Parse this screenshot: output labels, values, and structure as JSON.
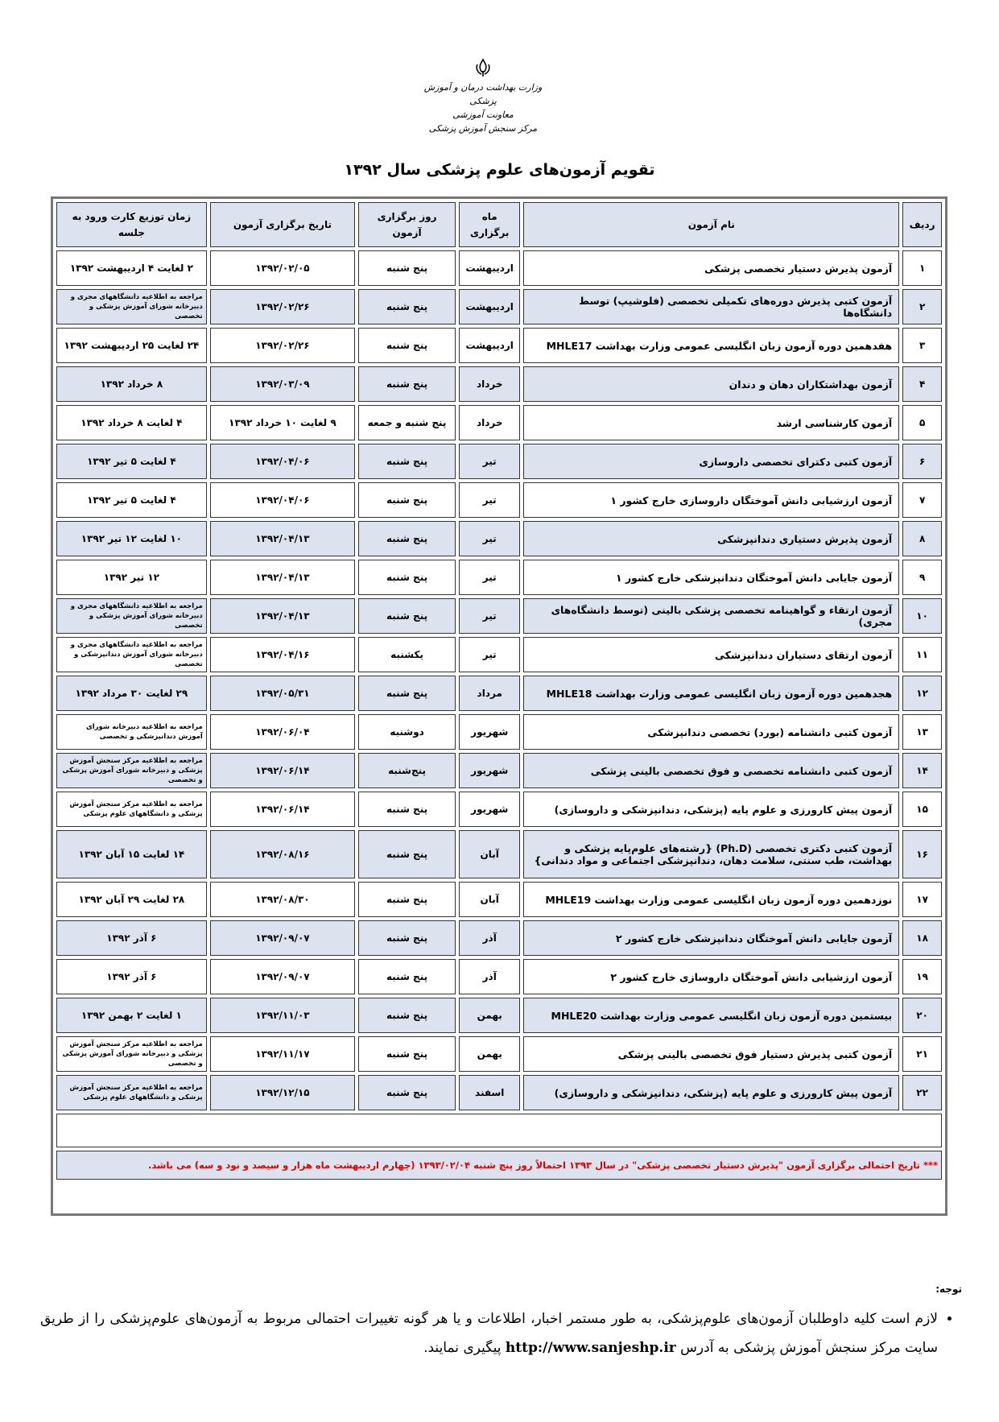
{
  "header": {
    "lines": [
      "وزارت بهداشت درمان و آموزش پزشکی",
      "معاونت آموزشی",
      "مرکز سنجش آموزش پزشکی"
    ],
    "title": "تقویم آزمون‌های علوم پزشکی سال ۱۳۹۲"
  },
  "table": {
    "columns": [
      "ردیف",
      "نام آزمون",
      "ماه برگزاری",
      "روز برگزاری آزمون",
      "تاریخ برگزاری آزمون",
      "زمان توزیع کارت ورود به جلسه"
    ],
    "rows": [
      [
        "۱",
        "آزمون پذیرش دستیار تخصصی پزشکی",
        "اردیبهشت",
        "پنج شنبه",
        "۱۳۹۲/۰۲/۰۵",
        "۲ لغایت ۴ اردیبهشت ۱۳۹۲"
      ],
      [
        "۲",
        "آزمون کتبی پذیرش دوره‌های تکمیلی تخصصی (فلوشیپ) توسط دانشگاه‌ها",
        "اردیبهشت",
        "پنج شنبه",
        "۱۳۹۲/۰۲/۲۶",
        "مراجعه به اطلاعیه دانشگاههای مجری و دبیرخانه شورای آموزش پزشکی و تخصصی"
      ],
      [
        "۳",
        "هفدهمین دوره آزمون زبان انگلیسی عمومی وزارت بهداشت MHLE17",
        "اردیبهشت",
        "پنج شنبه",
        "۱۳۹۲/۰۲/۲۶",
        "۲۴ لغایت ۲۵ اردیبهشت ۱۳۹۲"
      ],
      [
        "۴",
        "آزمون بهداشتکاران دهان و دندان",
        "خرداد",
        "پنج شنبه",
        "۱۳۹۲/۰۳/۰۹",
        "۸ خرداد ۱۳۹۲"
      ],
      [
        "۵",
        "آزمون کارشناسی ارشد",
        "خرداد",
        "پنج شنبه و جمعه",
        "۹ لغایت ۱۰ خرداد ۱۳۹۲",
        "۴ لغایت ۸ خرداد ۱۳۹۲"
      ],
      [
        "۶",
        "آزمون کتبی دکترای تخصصی داروسازی",
        "تیر",
        "پنج شنبه",
        "۱۳۹۲/۰۴/۰۶",
        "۴ لغایت ۵ تیر ۱۳۹۲"
      ],
      [
        "۷",
        "آزمون ارزشیابی دانش آموختگان داروسازی خارج کشور ۱",
        "تیر",
        "پنج شنبه",
        "۱۳۹۲/۰۴/۰۶",
        "۴ لغایت ۵ تیر ۱۳۹۲"
      ],
      [
        "۸",
        "آزمون پذیرش دستیاری دندانپزشکی",
        "تیر",
        "پنج شنبه",
        "۱۳۹۲/۰۴/۱۳",
        "۱۰ لغایت ۱۲ تیر ۱۳۹۲"
      ],
      [
        "۹",
        "آزمون جایابی دانش آموختگان دندانپزشکی خارج کشور ۱",
        "تیر",
        "پنج شنبه",
        "۱۳۹۲/۰۴/۱۳",
        "۱۲ تیر ۱۳۹۲"
      ],
      [
        "۱۰",
        "آزمون ارتقاء و گواهینامه تخصصی پزشکی بالینی (توسط دانشگاه‌های مجری)",
        "تیر",
        "پنج شنبه",
        "۱۳۹۲/۰۴/۱۳",
        "مراجعه به اطلاعیه دانشگاههای مجری و دبیرخانه شورای آموزش پزشکی و تخصصی"
      ],
      [
        "۱۱",
        "آزمون ارتقای دستیاران دندانپزشکی",
        "تیر",
        "یکشنبه",
        "۱۳۹۲/۰۴/۱۶",
        "مراجعه به اطلاعیه دانشگاههای مجری و دبیرخانه شورای آموزش دندانپزشکی و تخصصی"
      ],
      [
        "۱۲",
        "هجدهمین دوره آزمون زبان انگلیسی عمومی وزارت بهداشت MHLE18",
        "مرداد",
        "پنج شنبه",
        "۱۳۹۲/۰۵/۳۱",
        "۲۹ لغایت ۳۰ مرداد ۱۳۹۲"
      ],
      [
        "۱۳",
        "آزمون کتبی دانشنامه (بورد) تخصصی دندانپزشکی",
        "شهریور",
        "دوشنبه",
        "۱۳۹۲/۰۶/۰۴",
        "مراجعه به اطلاعیه دبیرخانه شورای آموزش دندانپزشکی و تخصصی"
      ],
      [
        "۱۴",
        "آزمون کتبی دانشنامه تخصصی و فوق تخصصی بالینی پزشکی",
        "شهریور",
        "پنج‌شنبه",
        "۱۳۹۲/۰۶/۱۴",
        "مراجعه به اطلاعیه مرکز سنجش آموزش پزشکی و دبیرخانه شورای آموزش پزشکی و تخصصی"
      ],
      [
        "۱۵",
        "آزمون پیش کارورزی و علوم پایه (پزشکی، دندانپزشکی و داروسازی)",
        "شهریور",
        "پنج شنبه",
        "۱۳۹۲/۰۶/۱۴",
        "مراجعه به اطلاعیه مرکز سنجش آموزش پزشکی و دانشگاههای علوم پزشکی"
      ],
      [
        "۱۶",
        "آزمون کتبی دکتری تخصصی (Ph.D) {رشته‌های علوم‌پایه پزشکی و بهداشت، طب سنتی، سلامت دهان، دندانپزشکی اجتماعی و مواد دندانی}",
        "آبان",
        "پنج شنبه",
        "۱۳۹۲/۰۸/۱۶",
        "۱۴ لغایت ۱۵ آبان ۱۳۹۲"
      ],
      [
        "۱۷",
        "نوزدهمین دوره آزمون زبان انگلیسی عمومی وزارت بهداشت MHLE19",
        "آبان",
        "پنج شنبه",
        "۱۳۹۲/۰۸/۳۰",
        "۲۸ لغایت ۲۹ آبان ۱۳۹۲"
      ],
      [
        "۱۸",
        "آزمون جایابی دانش آموختگان دندانپزشکی خارج کشور ۲",
        "آذر",
        "پنج شنبه",
        "۱۳۹۲/۰۹/۰۷",
        "۶ آذر ۱۳۹۲"
      ],
      [
        "۱۹",
        "آزمون ارزشیابی دانش آموختگان داروسازی خارج کشور ۲",
        "آذر",
        "پنج شنبه",
        "۱۳۹۲/۰۹/۰۷",
        "۶ آذر ۱۳۹۲"
      ],
      [
        "۲۰",
        "بیستمین دوره آزمون زبان انگلیسی عمومی وزارت بهداشت MHLE20",
        "بهمن",
        "پنج شنبه",
        "۱۳۹۲/۱۱/۰۳",
        "۱ لغایت ۲ بهمن ۱۳۹۲"
      ],
      [
        "۲۱",
        "آزمون کتبی پذیرش دستیار فوق تخصصی بالینی پزشکی",
        "بهمن",
        "پنج شنبه",
        "۱۳۹۲/۱۱/۱۷",
        "مراجعه به اطلاعیه مرکز سنجش آموزش پزشکی و دبیرخانه شورای آموزش پزشکی و تخصصی"
      ],
      [
        "۲۲",
        "آزمون پیش کارورزی و علوم پایه (پزشکی، دندانپزشکی و داروسازی)",
        "اسفند",
        "پنج شنبه",
        "۱۳۹۲/۱۲/۱۵",
        "مراجعه به اطلاعیه مرکز سنجش آموزش پزشکی و دانشگاههای علوم پزشکی"
      ]
    ],
    "footnote": "*** تاریخ احتمالی برگزاری آزمون \"پذیرش دستیار تخصصی پزشکی\" در سال ۱۳۹۳ احتمالاً روز پنج شنبه ۱۳۹۳/۰۲/۰۴ (چهارم اردیبهشت ماه هزار و سیصد و نود و سه) می باشد."
  },
  "note": {
    "label": "توجه:",
    "text_before": "لازم است کلیه داوطلبان آزمون‌های علوم‌پزشکی، به طور مستمر اخبار، اطلاعات و یا هر گونه تغییرات احتمالی مربوط به آزمون‌های علوم‌پزشکی را از طریق سایت مرکز سنجش آموزش پزشکی به آدرس",
    "url": "http://www.sanjeshp.ir",
    "text_after": "پیگیری نمایند."
  }
}
